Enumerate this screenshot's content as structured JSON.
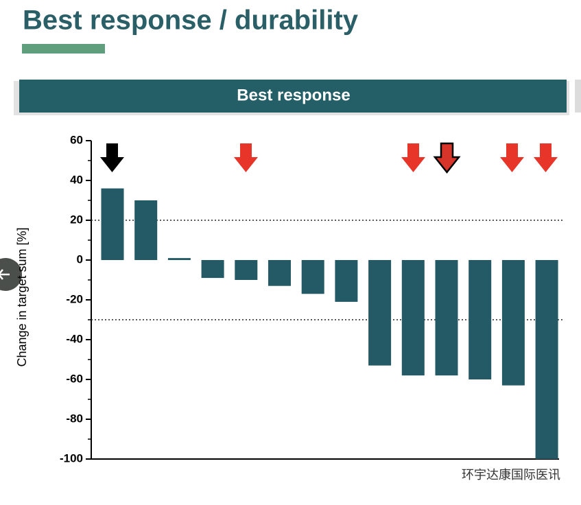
{
  "header": {
    "title": "Best response / durability",
    "banner": "Best response"
  },
  "chart_data": {
    "type": "bar",
    "categories": [
      null,
      null,
      null,
      null,
      null,
      null,
      null,
      null,
      null,
      null,
      null,
      null,
      null,
      null
    ],
    "values": [
      36,
      30,
      1,
      -9,
      -10,
      -13,
      -17,
      -21,
      -53,
      -58,
      -58,
      -60,
      -63,
      -100
    ],
    "color": "#245a66",
    "ylabel": "Change in target sum [%]",
    "ylim": [
      -100,
      60
    ],
    "yticks": [
      -100,
      -80,
      -60,
      -40,
      -20,
      0,
      20,
      40,
      60
    ],
    "minor_yticks": [
      -90,
      -70,
      -50,
      -30,
      -10,
      10,
      30,
      50
    ],
    "reference_lines": [
      20,
      -30
    ]
  },
  "watermark": "环宇达康国际医讯"
}
